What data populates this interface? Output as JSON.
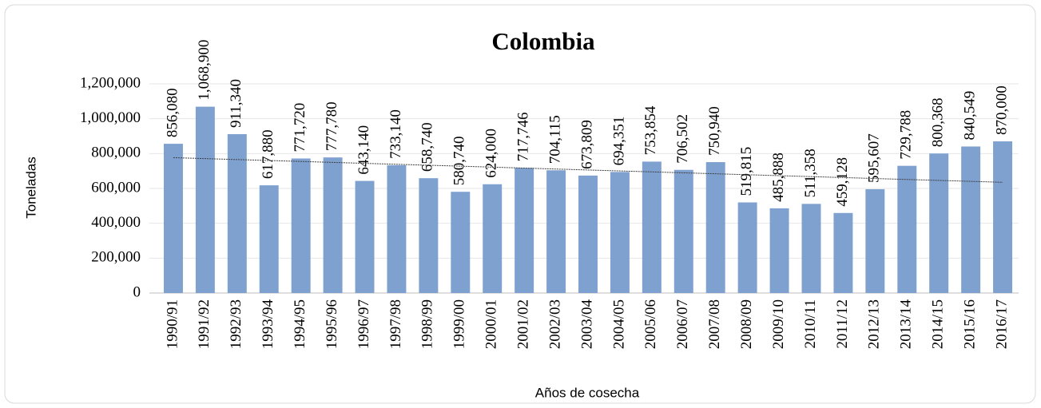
{
  "chart_data": {
    "type": "bar",
    "title": "Colombia",
    "x_label": "Años de cosecha",
    "y_label": "Toneladas",
    "categories": [
      "1990/91",
      "1991/92",
      "1992/93",
      "1993/94",
      "1994/95",
      "1995/96",
      "1996/97",
      "1997/98",
      "1998/99",
      "1999/00",
      "2000/01",
      "2001/02",
      "2002/03",
      "2003/04",
      "2004/05",
      "2005/06",
      "2006/07",
      "2007/08",
      "2008/09",
      "2009/10",
      "2010/11",
      "2011/12",
      "2012/13",
      "2013/14",
      "2014/15",
      "2015/16",
      "2016/17"
    ],
    "values": [
      856080,
      1068900,
      911340,
      617880,
      771720,
      777780,
      643140,
      733140,
      658740,
      580740,
      624000,
      717746,
      704115,
      673809,
      694351,
      753854,
      706502,
      750940,
      519815,
      485888,
      511358,
      459128,
      595607,
      729788,
      800368,
      840549,
      870000
    ],
    "value_labels": [
      "856,080",
      "1,068,900",
      "911,340",
      "617,880",
      "771,720",
      "777,780",
      "643,140",
      "733,140",
      "658,740",
      "580,740",
      "624,000",
      "717,746",
      "704,115",
      "673,809",
      "694,351",
      "753,854",
      "706,502",
      "750,940",
      "519,815",
      "485,888",
      "511,358",
      "459,128",
      "595,607",
      "729,788",
      "800,368",
      "840,549",
      "870,000"
    ],
    "color": "#7fa1d0",
    "ylim": [
      0,
      1200000
    ],
    "yticks": [
      0,
      {
        "value": 200000,
        "label": "200,000"
      },
      {
        "value": 400000,
        "label": "400,000"
      },
      {
        "value": 600000,
        "label": "600,000"
      },
      {
        "value": 800000,
        "label": "800,000"
      },
      {
        "value": 1000000,
        "label": "1,000,000"
      },
      {
        "value": 1200000,
        "label": "1,200,000"
      }
    ],
    "grid": true,
    "trendline": true
  }
}
